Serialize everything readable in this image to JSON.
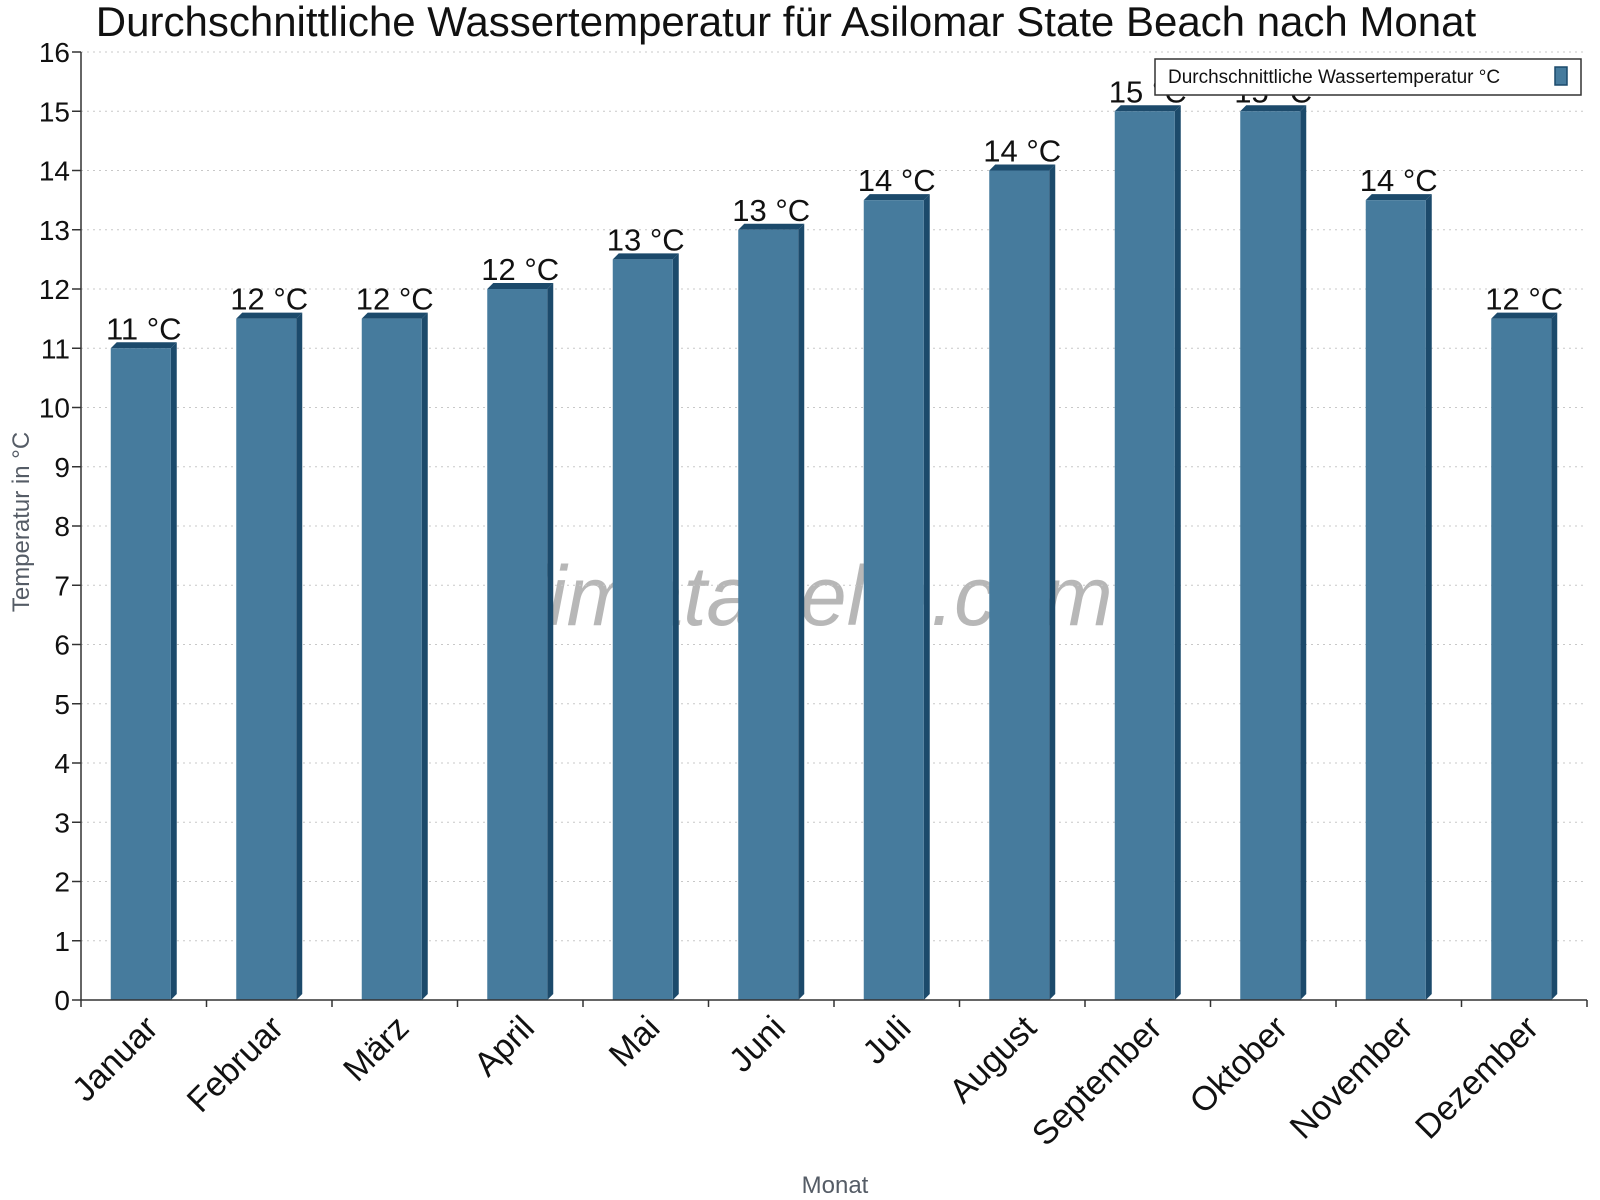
{
  "chart_data": {
    "type": "bar",
    "title": "Durchschnittliche Wassertemperatur für Asilomar State Beach nach Monat",
    "xlabel": "Monat",
    "ylabel": "Temperatur in °C",
    "categories": [
      "Januar",
      "Februar",
      "März",
      "April",
      "Mai",
      "Juni",
      "Juli",
      "August",
      "September",
      "Oktober",
      "November",
      "Dezember"
    ],
    "series": [
      {
        "name": "Durchschnittliche Wassertemperatur °C",
        "values": [
          11,
          11.5,
          11.5,
          12,
          12.5,
          13,
          13.5,
          14,
          15,
          15,
          13.5,
          11.5
        ],
        "labels": [
          "11 °C",
          "12 °C",
          "12 °C",
          "12 °C",
          "13 °C",
          "13 °C",
          "14 °C",
          "14 °C",
          "15 °C",
          "15 °C",
          "14 °C",
          "12 °C"
        ],
        "color": "#467b9d",
        "dark_color": "#1c4a6b"
      }
    ],
    "ylim": [
      0,
      16
    ],
    "yticks": [
      0,
      1,
      2,
      3,
      4,
      5,
      6,
      7,
      8,
      9,
      10,
      11,
      12,
      13,
      14,
      15,
      16
    ],
    "grid": true,
    "legend_position": "top-right",
    "watermark": "klimatabelle.com"
  }
}
